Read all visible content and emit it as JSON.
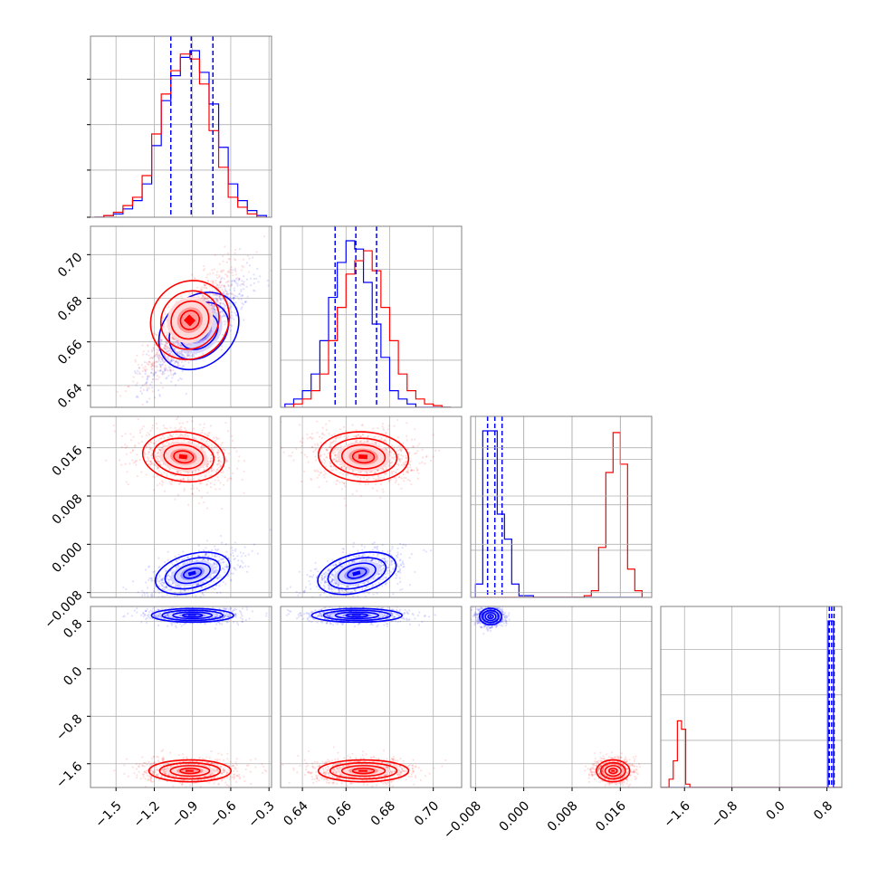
{
  "chart_data": {
    "type": "corner",
    "grid": true,
    "title": "",
    "legend": "",
    "colors": {
      "blue": "#0000ff",
      "red": "#ff0000",
      "frame": "#808080",
      "grid": "#b0b0b0"
    },
    "parameters": [
      {
        "range": [
          -1.7,
          -0.28
        ],
        "ticks": [
          -1.5,
          -1.2,
          -0.9,
          -0.6,
          -0.3
        ],
        "tick_labels": [
          "−1.5",
          "−1.2",
          "−0.9",
          "−0.6",
          "−0.3"
        ]
      },
      {
        "range": [
          0.63,
          0.713
        ],
        "ticks": [
          0.64,
          0.66,
          0.68,
          0.7
        ],
        "tick_labels": [
          "0.64",
          "0.66",
          "0.68",
          "0.70"
        ]
      },
      {
        "range": [
          -0.0088,
          0.0212
        ],
        "ticks": [
          -0.008,
          0.0,
          0.008,
          0.016
        ],
        "tick_labels": [
          "−0.008",
          "0.000",
          "0.008",
          "0.016"
        ]
      },
      {
        "range": [
          -2.0,
          1.05
        ],
        "ticks": [
          -1.6,
          -0.8,
          0.0,
          0.8
        ],
        "tick_labels": [
          "−1.6",
          "−0.8",
          "0.0",
          "0.8"
        ]
      }
    ],
    "quantiles": {
      "p0": [
        -1.07,
        -0.91,
        -0.74
      ],
      "p1": [
        0.655,
        0.6645,
        0.674
      ],
      "p2": [
        -0.006,
        -0.0048,
        -0.0036
      ],
      "p3": [
        0.84,
        0.88,
        0.92
      ]
    },
    "hist1d": {
      "p0": {
        "bins": [
          -1.67,
          -1.595,
          -1.52,
          -1.445,
          -1.37,
          -1.295,
          -1.22,
          -1.145,
          -1.07,
          -0.995,
          -0.92,
          -0.845,
          -0.77,
          -0.695,
          -0.62,
          -0.545,
          -0.47,
          -0.395,
          -0.32
        ],
        "blue": [
          0.0,
          0.01,
          0.02,
          0.05,
          0.1,
          0.2,
          0.43,
          0.7,
          0.85,
          0.96,
          1.0,
          0.87,
          0.68,
          0.42,
          0.2,
          0.1,
          0.04,
          0.01
        ],
        "red": [
          0.0,
          0.01,
          0.03,
          0.07,
          0.12,
          0.25,
          0.5,
          0.74,
          0.88,
          0.98,
          0.95,
          0.8,
          0.52,
          0.3,
          0.12,
          0.06,
          0.02,
          0.0
        ]
      },
      "p1": {
        "bins": [
          0.632,
          0.636,
          0.64,
          0.644,
          0.648,
          0.652,
          0.656,
          0.66,
          0.664,
          0.668,
          0.672,
          0.676,
          0.68,
          0.684,
          0.688,
          0.692,
          0.696,
          0.7,
          0.704,
          0.708
        ],
        "blue": [
          0.02,
          0.05,
          0.1,
          0.2,
          0.4,
          0.66,
          0.87,
          1.0,
          0.95,
          0.75,
          0.5,
          0.3,
          0.1,
          0.05,
          0.02,
          0.0,
          0.0,
          0.0,
          0.0
        ],
        "red": [
          0.0,
          0.02,
          0.05,
          0.1,
          0.2,
          0.4,
          0.6,
          0.8,
          0.88,
          0.94,
          0.82,
          0.6,
          0.4,
          0.2,
          0.1,
          0.05,
          0.02,
          0.01,
          0.0
        ]
      },
      "p2": {
        "bins": [
          -0.008,
          -0.0068,
          -0.0056,
          -0.0044,
          -0.0032,
          -0.002,
          -0.0008,
          0.0004,
          0.0016,
          0.0028,
          0.004,
          0.0052,
          0.0064,
          0.0076,
          0.0088,
          0.01,
          0.0112,
          0.0124,
          0.0136,
          0.0148,
          0.016,
          0.0172,
          0.0184,
          0.0196
        ],
        "blue": [
          0.08,
          1.0,
          1.0,
          0.5,
          0.35,
          0.08,
          0.01,
          0.01,
          0.0,
          0.0,
          0.0,
          0.0,
          0.0,
          0.0,
          0.0,
          0.0,
          0.0,
          0.0,
          0.0,
          0.0,
          0.0,
          0.0,
          0.0
        ],
        "red": [
          0.0,
          0.0,
          0.0,
          0.0,
          0.0,
          0.0,
          0.0,
          0.0,
          0.0,
          0.0,
          0.0,
          0.0,
          0.0,
          0.0,
          0.0,
          0.01,
          0.04,
          0.3,
          0.75,
          0.99,
          0.8,
          0.17,
          0.04
        ]
      },
      "p3": {
        "bins": [
          -2.0,
          -1.93,
          -1.86,
          -1.79,
          -1.72,
          -1.65,
          -1.58,
          -1.51,
          -1.44,
          -0.8,
          0.0,
          0.7,
          0.78,
          0.82,
          0.85,
          0.88,
          0.91,
          0.95,
          1.05
        ],
        "blue": [
          0.0,
          0.0,
          0.0,
          0.0,
          0.0,
          0.0,
          0.0,
          0.0,
          0.0,
          0.0,
          0.0,
          0.0,
          0.0,
          1.0,
          1.0,
          1.0,
          0.0,
          0.0
        ],
        "red": [
          0.0,
          0.0,
          0.05,
          0.16,
          0.4,
          0.35,
          0.02,
          0.0,
          0.0,
          0.0,
          0.0,
          0.0,
          0.0,
          0.0,
          0.0,
          0.0,
          0.0,
          0.0
        ]
      }
    },
    "clusters": [
      {
        "row": 1,
        "col": 0,
        "blue": {
          "mean": [
            -0.85,
            0.665
          ],
          "sd": [
            0.15,
            0.009
          ],
          "rho": 0.85
        },
        "red": {
          "mean": [
            -0.92,
            0.67
          ],
          "sd": [
            0.14,
            0.01
          ],
          "rho": 0.85
        }
      },
      {
        "row": 2,
        "col": 0,
        "blue": {
          "mean": [
            -0.9,
            -0.0048
          ],
          "sd": [
            0.13,
            0.0015
          ],
          "rho": 0.5
        },
        "red": {
          "mean": [
            -0.97,
            0.0145
          ],
          "sd": [
            0.14,
            0.0018
          ],
          "rho": -0.2
        }
      },
      {
        "row": 2,
        "col": 1,
        "blue": {
          "mean": [
            0.665,
            -0.0048
          ],
          "sd": [
            0.008,
            0.0015
          ],
          "rho": 0.5
        },
        "red": {
          "mean": [
            0.668,
            0.0145
          ],
          "sd": [
            0.009,
            0.0018
          ],
          "rho": -0.1
        }
      },
      {
        "row": 2,
        "col": 2,
        "blue": null,
        "red": null
      },
      {
        "row": 3,
        "col": 0,
        "blue": {
          "mean": [
            -0.9,
            0.9
          ],
          "sd": [
            0.14,
            0.05
          ],
          "rho": 0.0
        },
        "red": {
          "mean": [
            -0.92,
            -1.72
          ],
          "sd": [
            0.14,
            0.08
          ],
          "rho": 0.0
        }
      },
      {
        "row": 3,
        "col": 1,
        "blue": {
          "mean": [
            0.665,
            0.9
          ],
          "sd": [
            0.009,
            0.05
          ],
          "rho": 0.0
        },
        "red": {
          "mean": [
            0.668,
            -1.72
          ],
          "sd": [
            0.009,
            0.08
          ],
          "rho": 0.0
        }
      },
      {
        "row": 3,
        "col": 2,
        "blue": {
          "mean": [
            -0.0055,
            0.88
          ],
          "sd": [
            0.0008,
            0.06
          ],
          "rho": 0.0
        },
        "red": {
          "mean": [
            0.0148,
            -1.72
          ],
          "sd": [
            0.0012,
            0.08
          ],
          "rho": 0.0
        }
      }
    ]
  }
}
